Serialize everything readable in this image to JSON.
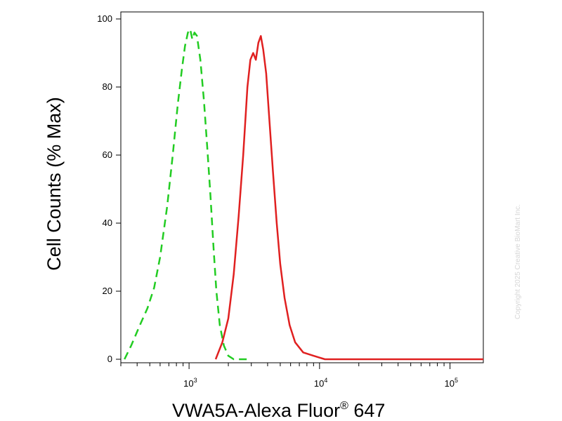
{
  "chart_data": {
    "type": "line",
    "title": "",
    "xlabel": "VWA5A-Alexa Fluor",
    "xlabel_superscript": "®",
    "xlabel_suffix": " 647",
    "ylabel": "Cell Counts (% Max)",
    "xscale": "log",
    "xlim": [
      300,
      180000
    ],
    "ylim": [
      0,
      100
    ],
    "grid": false,
    "yticks": [
      0,
      20,
      40,
      60,
      80,
      100
    ],
    "xtick_labels": [
      {
        "value": 1000,
        "base": "10",
        "exp": "3"
      },
      {
        "value": 10000,
        "base": "10",
        "exp": "4"
      },
      {
        "value": 100000,
        "base": "10",
        "exp": "5"
      }
    ],
    "series": [
      {
        "color": "#22cc22",
        "style": "dashed",
        "x": [
          320,
          360,
          420,
          480,
          540,
          600,
          680,
          750,
          820,
          880,
          930,
          980,
          1020,
          1060,
          1100,
          1150,
          1220,
          1300,
          1380,
          1460,
          1540,
          1620,
          1720,
          1850,
          2000,
          2200,
          2500,
          3000
        ],
        "y": [
          0,
          4,
          10,
          15,
          21,
          30,
          45,
          60,
          75,
          85,
          92,
          96,
          97,
          94,
          96,
          95,
          88,
          76,
          62,
          48,
          33,
          20,
          10,
          4,
          1,
          0,
          0,
          0
        ]
      },
      {
        "color": "#e02020",
        "style": "solid",
        "x": [
          1600,
          1800,
          2000,
          2200,
          2400,
          2600,
          2800,
          2950,
          3100,
          3250,
          3400,
          3550,
          3700,
          3900,
          4100,
          4400,
          4700,
          5000,
          5400,
          5900,
          6500,
          7500,
          9000,
          11000,
          15000,
          30000,
          100000,
          180000
        ],
        "y": [
          0,
          5,
          12,
          25,
          42,
          60,
          80,
          88,
          90,
          88,
          93,
          95,
          91,
          84,
          72,
          55,
          40,
          28,
          18,
          10,
          5,
          2,
          1,
          0,
          0,
          0,
          0,
          0
        ]
      }
    ]
  },
  "watermark": "Copyright 2025 Creative BioMart Inc."
}
